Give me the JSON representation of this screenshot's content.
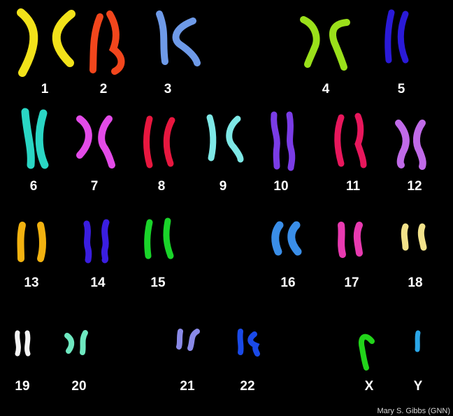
{
  "credit": "Mary S. Gibbs (GNN)",
  "chromosomes": [
    {
      "label": "1",
      "color": "#f2e21a"
    },
    {
      "label": "2",
      "color": "#f2461c"
    },
    {
      "label": "3",
      "color": "#6e9ae8"
    },
    {
      "label": "4",
      "color": "#9ae01a"
    },
    {
      "label": "5",
      "color": "#2a1ad8"
    },
    {
      "label": "6",
      "color": "#2ad6c4"
    },
    {
      "label": "7",
      "color": "#e34be8"
    },
    {
      "label": "8",
      "color": "#e8173f"
    },
    {
      "label": "9",
      "color": "#7ee8e6"
    },
    {
      "label": "10",
      "color": "#7a3ce6"
    },
    {
      "label": "11",
      "color": "#e8175c"
    },
    {
      "label": "12",
      "color": "#c06ae8"
    },
    {
      "label": "13",
      "color": "#f2b210"
    },
    {
      "label": "14",
      "color": "#3a1ee0"
    },
    {
      "label": "15",
      "color": "#1ad42a"
    },
    {
      "label": "16",
      "color": "#3a8ee8"
    },
    {
      "label": "17",
      "color": "#e83ab0"
    },
    {
      "label": "18",
      "color": "#f2e28a"
    },
    {
      "label": "19",
      "color": "#f4f4f4"
    },
    {
      "label": "20",
      "color": "#6ee8c0"
    },
    {
      "label": "21",
      "color": "#8a8ae8"
    },
    {
      "label": "22",
      "color": "#1a4ae8"
    },
    {
      "label": "X",
      "color": "#22d41a"
    },
    {
      "label": "Y",
      "color": "#2aa6e8"
    }
  ]
}
